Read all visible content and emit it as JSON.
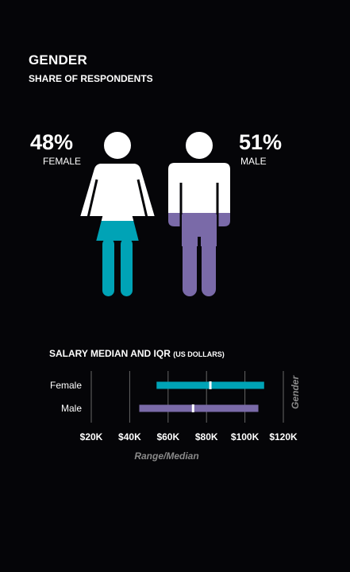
{
  "header": {
    "title": "GENDER",
    "subtitle": "SHARE OF RESPONDENTS"
  },
  "gender_share": {
    "female": {
      "percent": "48%",
      "label": "FEMALE",
      "value": 48
    },
    "male": {
      "percent": "51%",
      "label": "MALE",
      "value": 51
    }
  },
  "colors": {
    "female": "#00a3b6",
    "male": "#7a6aa8",
    "figure": "#ffffff",
    "grid": "#666666"
  },
  "icons": [
    "female-figure-icon",
    "male-figure-icon"
  ],
  "chart_data": {
    "type": "range-bar",
    "title": "SALARY MEDIAN AND IQR",
    "title_unit": "(US DOLLARS)",
    "xlabel": "Range/Median",
    "ylabel": "Gender",
    "categories": [
      "Female",
      "Male"
    ],
    "series": [
      {
        "category": "Female",
        "low": 54000,
        "high": 110000,
        "median": 82000
      },
      {
        "category": "Male",
        "low": 45000,
        "high": 107000,
        "median": 73000
      }
    ],
    "xlim": [
      20000,
      120000
    ],
    "ticks": [
      20000,
      40000,
      60000,
      80000,
      100000,
      120000
    ],
    "tick_labels": [
      "$20K",
      "$40K",
      "$60K",
      "$80K",
      "$100K",
      "$120K"
    ],
    "grid": true
  }
}
